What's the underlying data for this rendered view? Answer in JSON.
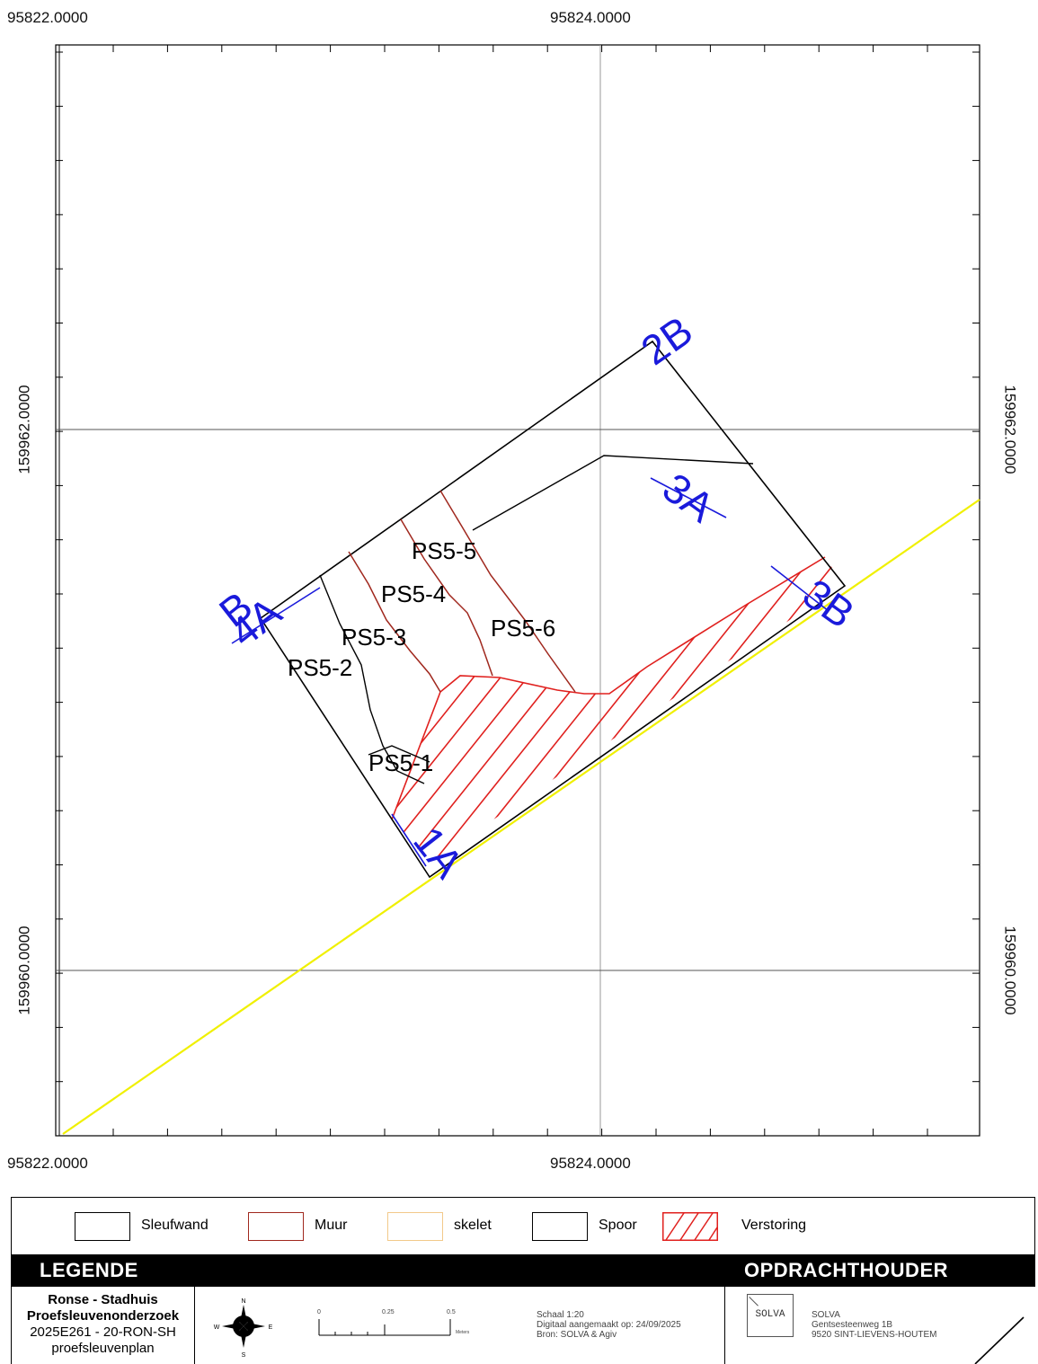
{
  "coordinates": {
    "x_top_left": "95822.0000",
    "x_top_center": "95824.0000",
    "x_bottom_left": "95822.0000",
    "x_bottom_center": "95824.0000",
    "y_left_upper": "159962.0000",
    "y_left_lower": "159960.0000",
    "y_right_upper": "159962.0000",
    "y_right_lower": "159960.0000"
  },
  "map_labels": {
    "ps5_1": "PS5-1",
    "ps5_2": "PS5-2",
    "ps5_3": "PS5-3",
    "ps5_4": "PS5-4",
    "ps5_5": "PS5-5",
    "ps5_6": "PS5-6",
    "profile_2b": "2B",
    "profile_3a": "3A",
    "profile_3b": "3B",
    "profile_4a": "4A",
    "profile_b": "B",
    "profile_1a": "1A"
  },
  "legend": {
    "items": [
      {
        "label": "Sleufwand",
        "color": "#000000",
        "style": "outline"
      },
      {
        "label": "Muur",
        "color": "#a0281e",
        "style": "outline"
      },
      {
        "label": "skelet",
        "color": "#f2c98a",
        "style": "outline"
      },
      {
        "label": "Spoor",
        "color": "#000000",
        "style": "outline"
      },
      {
        "label": "Verstoring",
        "color": "#e0201e",
        "style": "hatched"
      }
    ],
    "title": "LEGENDE",
    "client_title": "OPDRACHTHOUDER"
  },
  "project": {
    "line1": "Ronse - Stadhuis",
    "line2": "Proefsleuvenonderzoek",
    "line3": "2025E261 - 20-RON-SH",
    "line4": "proefsleuvenplan"
  },
  "scalebar": {
    "tick_0": "0",
    "tick_mid": "0.25",
    "tick_end": "0.5",
    "unit": "Meters"
  },
  "north_arrow": {
    "n": "N",
    "e": "E",
    "s": "S",
    "w": "W"
  },
  "meta": {
    "scale": "Schaal 1:20",
    "date": "Digitaal aangemaakt op: 24/09/2025",
    "source": "Bron: SOLVA & Agiv"
  },
  "client": {
    "logo_text": "SOLVA",
    "name": "SOLVA",
    "address1": "Gentsesteenweg 1B",
    "address2": "9520 SINT-LIEVENS-HOUTEM"
  },
  "colors": {
    "trench": "#000000",
    "wall": "#a0281e",
    "disturbance": "#e0201e",
    "profile_labels": "#1a1adb",
    "boundary": "#f0f000",
    "grid": "#999999"
  }
}
